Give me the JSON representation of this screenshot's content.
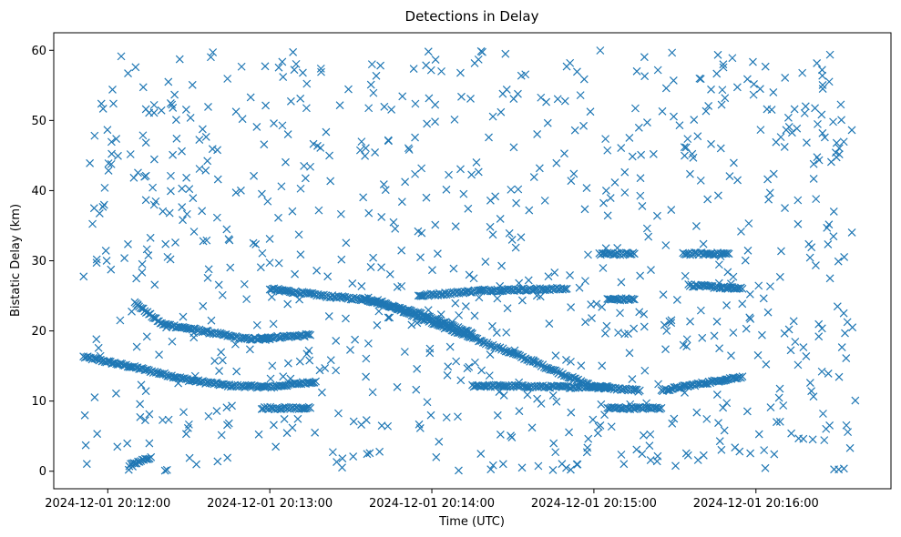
{
  "chart_data": {
    "type": "scatter",
    "title": "Detections in Delay",
    "xlabel": "Time (UTC)",
    "ylabel": "Bistatic Delay (km)",
    "marker": "x",
    "color": "#1f77b4",
    "grid": false,
    "xlim": [
      "2024-12-01 20:11:40",
      "2024-12-01 20:16:50"
    ],
    "ylim": [
      -2.5,
      62.5
    ],
    "x_ticks": [
      "2024-12-01 20:12:00",
      "2024-12-01 20:13:00",
      "2024-12-01 20:14:00",
      "2024-12-01 20:15:00",
      "2024-12-01 20:16:00"
    ],
    "y_ticks": [
      0,
      10,
      20,
      30,
      40,
      50,
      60
    ],
    "time_range": [
      "2024-12-01 20:11:51",
      "2024-12-01 20:16:37"
    ],
    "tracks": [
      {
        "points": [
          [
            "2024-12-01 20:11:51",
            16.3
          ],
          [
            "2024-12-01 20:12:10",
            14.8
          ],
          [
            "2024-12-01 20:12:30",
            13.0
          ],
          [
            "2024-12-01 20:12:45",
            12.2
          ],
          [
            "2024-12-01 20:13:00",
            12.0
          ],
          [
            "2024-12-01 20:13:17",
            12.8
          ]
        ]
      },
      {
        "points": [
          [
            "2024-12-01 20:12:10",
            24.0
          ],
          [
            "2024-12-01 20:12:20",
            21.0
          ],
          [
            "2024-12-01 20:12:35",
            20.0
          ],
          [
            "2024-12-01 20:12:50",
            18.9
          ],
          [
            "2024-12-01 20:13:00",
            18.8
          ]
        ]
      },
      {
        "points": [
          [
            "2024-12-01 20:12:57",
            19.0
          ],
          [
            "2024-12-01 20:13:15",
            19.4
          ]
        ]
      },
      {
        "points": [
          [
            "2024-12-01 20:13:00",
            26.0
          ],
          [
            "2024-12-01 20:13:20",
            25.0
          ],
          [
            "2024-12-01 20:13:40",
            24.3
          ],
          [
            "2024-12-01 20:14:00",
            21.2
          ],
          [
            "2024-12-01 20:14:30",
            16.8
          ],
          [
            "2024-12-01 20:15:00",
            12.0
          ],
          [
            "2024-12-01 20:15:17",
            11.5
          ]
        ]
      },
      {
        "points": [
          [
            "2024-12-01 20:13:35",
            24.5
          ],
          [
            "2024-12-01 20:13:55",
            22.5
          ],
          [
            "2024-12-01 20:14:15",
            19.6
          ]
        ]
      },
      {
        "points": [
          [
            "2024-12-01 20:14:15",
            12.2
          ],
          [
            "2024-12-01 20:14:50",
            12.0
          ],
          [
            "2024-12-01 20:15:05",
            12.1
          ]
        ]
      },
      {
        "points": [
          [
            "2024-12-01 20:13:55",
            25.0
          ],
          [
            "2024-12-01 20:14:20",
            25.8
          ],
          [
            "2024-12-01 20:14:50",
            26.0
          ]
        ]
      },
      {
        "points": [
          [
            "2024-12-01 20:15:25",
            11.5
          ],
          [
            "2024-12-01 20:15:40",
            12.5
          ],
          [
            "2024-12-01 20:15:55",
            13.5
          ]
        ]
      },
      {
        "points": [
          [
            "2024-12-01 20:15:35",
            26.5
          ],
          [
            "2024-12-01 20:15:55",
            26.0
          ]
        ]
      },
      {
        "points": [
          [
            "2024-12-01 20:15:33",
            31.0
          ],
          [
            "2024-12-01 20:15:50",
            31.0
          ]
        ]
      },
      {
        "points": [
          [
            "2024-12-01 20:15:02",
            31.0
          ],
          [
            "2024-12-01 20:15:15",
            31.0
          ]
        ]
      },
      {
        "points": [
          [
            "2024-12-01 20:15:05",
            24.5
          ],
          [
            "2024-12-01 20:15:15",
            24.5
          ]
        ]
      },
      {
        "points": [
          [
            "2024-12-01 20:15:05",
            9.0
          ],
          [
            "2024-12-01 20:15:25",
            9.0
          ]
        ]
      },
      {
        "points": [
          [
            "2024-12-01 20:12:57",
            9.0
          ],
          [
            "2024-12-01 20:13:15",
            9.0
          ]
        ]
      },
      {
        "points": [
          [
            "2024-12-01 20:12:08",
            0.8
          ],
          [
            "2024-12-01 20:12:16",
            2.0
          ]
        ]
      }
    ],
    "clutter_count": 820,
    "clutter_delay_range": [
      0,
      60
    ]
  }
}
